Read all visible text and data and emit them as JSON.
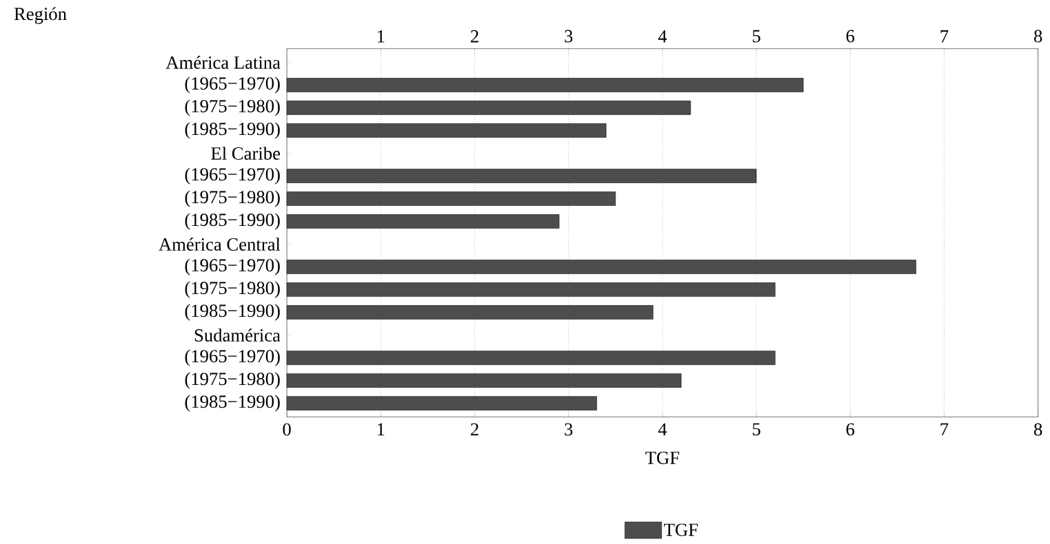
{
  "chart_data": {
    "type": "bar",
    "orientation": "horizontal",
    "annotations": [
      "Región"
    ],
    "xlabel": "TGF",
    "categories": [
      "América Latina",
      "(1965−1970)",
      "(1975−1980)",
      "(1985−1990)",
      "El Caribe",
      "(1965−1970)",
      "(1975−1980)",
      "(1985−1990)",
      "América Central",
      "(1965−1970)",
      "(1975−1980)",
      "(1985−1990)",
      "Sudamérica",
      "(1965−1970)",
      "(1975−1980)",
      "(1985−1990)"
    ],
    "series": [
      {
        "name": "TGF",
        "color": "#4d4d4d",
        "values": [
          null,
          5.5,
          4.3,
          3.4,
          null,
          5.0,
          3.5,
          2.9,
          null,
          6.7,
          5.2,
          3.9,
          null,
          5.2,
          4.2,
          3.3
        ]
      }
    ],
    "xlim": [
      0,
      8
    ],
    "xticks": [
      0,
      1,
      2,
      3,
      4,
      5,
      6,
      7,
      8
    ],
    "x2lim": [
      0,
      8
    ],
    "x2ticks": [
      1,
      2,
      3,
      4,
      5,
      6,
      7,
      8
    ],
    "grid": "x",
    "legend": "bottom"
  }
}
